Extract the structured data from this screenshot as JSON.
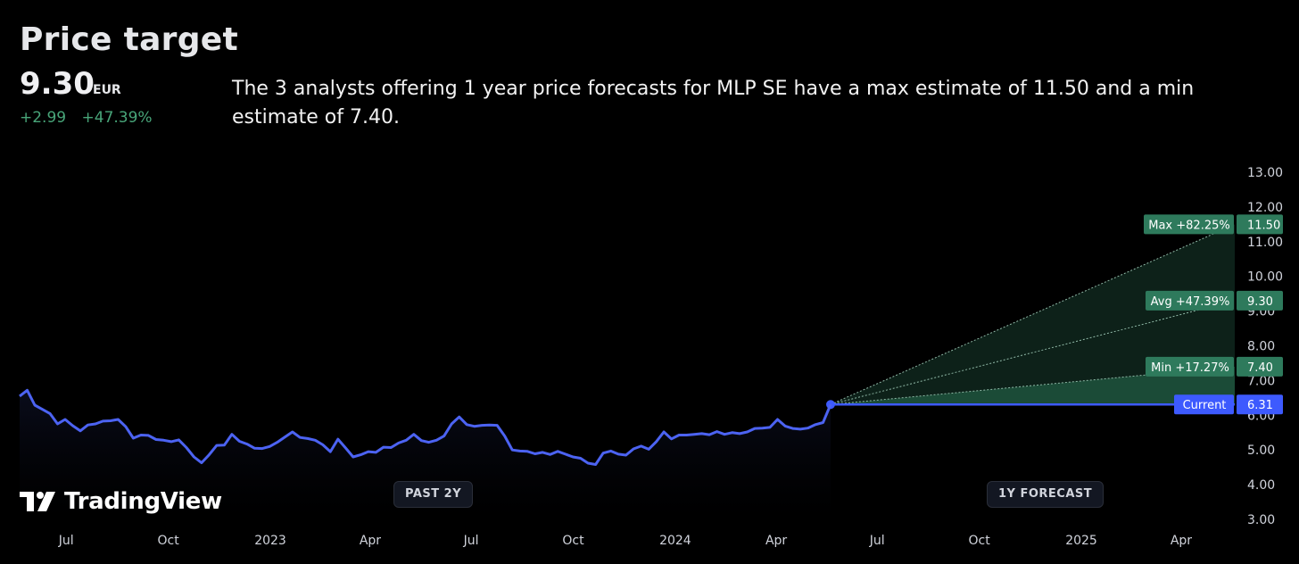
{
  "header": {
    "title": "Price target",
    "price": "9.30",
    "currency": "EUR",
    "change_abs": "+2.99",
    "change_pct": "+47.39%",
    "description": "The 3 analysts offering 1 year price forecasts for MLP SE have a max estimate of 11.50 and a min estimate of 7.40."
  },
  "pills": {
    "past": "PAST 2Y",
    "forecast": "1Y FORECAST"
  },
  "logo": {
    "text": "TradingView"
  },
  "colors": {
    "line": "#4c63f2",
    "green": "#2e7a5c",
    "up": "#48a579",
    "current": "#3d5afe"
  },
  "chart_data": {
    "type": "line",
    "title": "",
    "xlabel": "",
    "ylabel": "",
    "x_ticks": [
      "Jul",
      "Oct",
      "2023",
      "Apr",
      "Jul",
      "Oct",
      "2024",
      "Apr",
      "Jul",
      "Oct",
      "2025",
      "Apr"
    ],
    "y_ticks": [
      "3.00",
      "4.00",
      "5.00",
      "6.00",
      "7.00",
      "8.00",
      "9.00",
      "10.00",
      "11.00",
      "12.00",
      "13.00"
    ],
    "ylim": [
      3,
      13
    ],
    "price_history_start": "2022-05-20",
    "price_history_end": "2024-05-20",
    "price_history": [
      6.55,
      6.72,
      6.29,
      6.17,
      6.05,
      5.75,
      5.88,
      5.7,
      5.55,
      5.72,
      5.75,
      5.83,
      5.84,
      5.88,
      5.67,
      5.34,
      5.43,
      5.42,
      5.3,
      5.28,
      5.24,
      5.29,
      5.07,
      4.8,
      4.63,
      4.86,
      5.13,
      5.14,
      5.45,
      5.25,
      5.17,
      5.05,
      5.04,
      5.1,
      5.22,
      5.37,
      5.52,
      5.36,
      5.33,
      5.28,
      5.15,
      4.95,
      5.31,
      5.06,
      4.8,
      4.86,
      4.95,
      4.93,
      5.08,
      5.07,
      5.2,
      5.28,
      5.45,
      5.27,
      5.22,
      5.28,
      5.4,
      5.75,
      5.95,
      5.73,
      5.68,
      5.71,
      5.72,
      5.71,
      5.4,
      5.0,
      4.97,
      4.96,
      4.89,
      4.93,
      4.87,
      4.96,
      4.88,
      4.8,
      4.76,
      4.62,
      4.58,
      4.91,
      4.97,
      4.88,
      4.85,
      5.03,
      5.11,
      5.02,
      5.24,
      5.52,
      5.32,
      5.43,
      5.43,
      5.45,
      5.47,
      5.44,
      5.53,
      5.45,
      5.5,
      5.47,
      5.52,
      5.62,
      5.63,
      5.65,
      5.88,
      5.69,
      5.62,
      5.6,
      5.63,
      5.73,
      5.79,
      6.31
    ],
    "forecast": {
      "current": {
        "label": "Current",
        "value": "6.31"
      },
      "max": {
        "label": "Max +82.25%",
        "value": "11.50"
      },
      "avg": {
        "label": "Avg +47.39%",
        "value": "9.30"
      },
      "min": {
        "label": "Min +17.27%",
        "value": "7.40"
      }
    },
    "grid": false,
    "legend": "none"
  }
}
